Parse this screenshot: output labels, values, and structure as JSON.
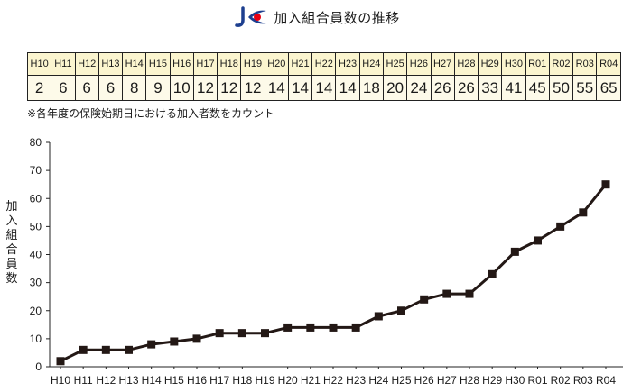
{
  "title": "加入組合員数の推移",
  "colors": {
    "line": "#231815",
    "table_header_bg": "#fbf5cf",
    "table_value_bg": "#fdfae9",
    "logo_blue": "#1d3f8f",
    "logo_red": "#e60012"
  },
  "table": {
    "years": [
      "H10",
      "H11",
      "H12",
      "H13",
      "H14",
      "H15",
      "H16",
      "H17",
      "H18",
      "H19",
      "H20",
      "H21",
      "H22",
      "H23",
      "H24",
      "H25",
      "H26",
      "H27",
      "H28",
      "H29",
      "H30",
      "R01",
      "R02",
      "R03",
      "R04"
    ],
    "values": [
      "2",
      "6",
      "6",
      "6",
      "8",
      "9",
      "10",
      "12",
      "12",
      "12",
      "14",
      "14",
      "14",
      "14",
      "18",
      "20",
      "24",
      "26",
      "26",
      "33",
      "41",
      "45",
      "50",
      "55",
      "65"
    ]
  },
  "note": "※各年度の保険始期日における加入者数をカウント",
  "chart_data": {
    "type": "line",
    "title": "加入組合員数の推移",
    "xlabel": "",
    "ylabel": "加入組合員数",
    "categories": [
      "H10",
      "H11",
      "H12",
      "H13",
      "H14",
      "H15",
      "H16",
      "H17",
      "H18",
      "H19",
      "H20",
      "H21",
      "H22",
      "H23",
      "H24",
      "H25",
      "H26",
      "H27",
      "H28",
      "H29",
      "H30",
      "R01",
      "R02",
      "R03",
      "R04"
    ],
    "series": [
      {
        "values": [
          2,
          6,
          6,
          6,
          8,
          9,
          10,
          12,
          12,
          12,
          14,
          14,
          14,
          14,
          18,
          20,
          24,
          26,
          26,
          33,
          41,
          45,
          50,
          55,
          65
        ]
      }
    ],
    "ylim": [
      0,
      80
    ],
    "yticks": [
      0,
      10,
      20,
      30,
      40,
      50,
      60,
      70,
      80
    ],
    "marker": "square",
    "grid": false,
    "legend": "none"
  }
}
